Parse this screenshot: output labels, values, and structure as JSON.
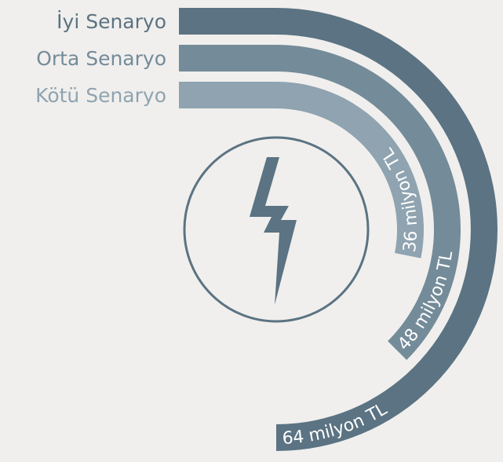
{
  "chart_data": {
    "type": "radial-bar",
    "categories": [
      "İyi Senaryo",
      "Orta Senaryo",
      "Kötü Senaryo"
    ],
    "values": [
      64,
      48,
      36
    ],
    "value_labels": [
      "64 milyon TL",
      "48 milyon TL",
      "36 milyon TL"
    ],
    "colors": [
      "#5b7382",
      "#748b99",
      "#8fa3b0"
    ]
  }
}
